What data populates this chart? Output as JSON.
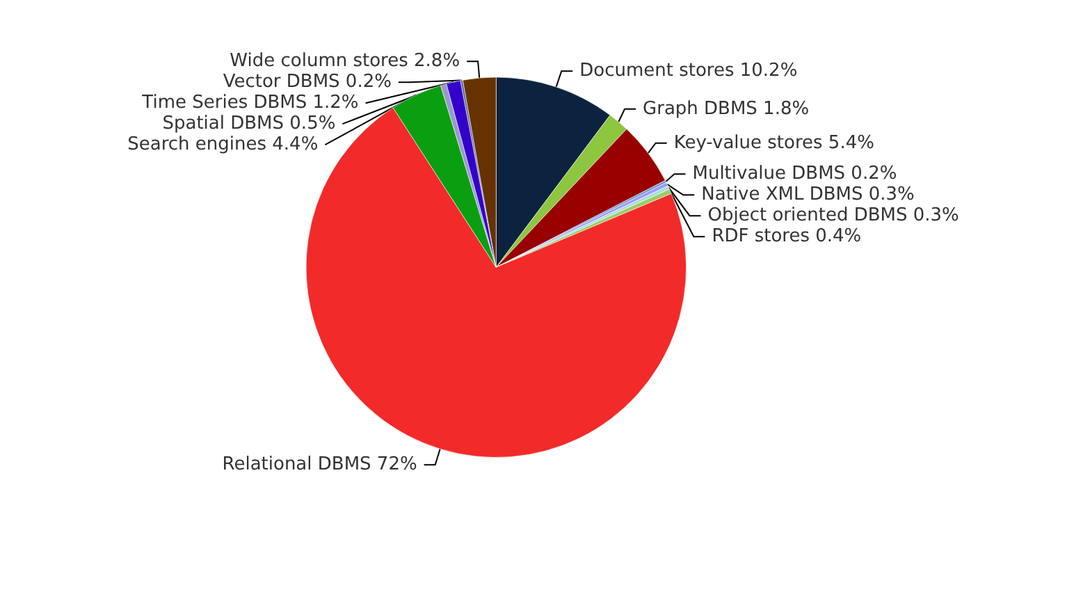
{
  "chart_data": {
    "type": "pie",
    "categories": [
      "Document stores",
      "Graph DBMS",
      "Key-value stores",
      "Multivalue DBMS",
      "Native XML DBMS",
      "Object oriented DBMS",
      "RDF stores",
      "Relational DBMS",
      "Search engines",
      "Spatial DBMS",
      "Time Series DBMS",
      "Vector DBMS",
      "Wide column stores"
    ],
    "values": [
      10.2,
      1.8,
      5.4,
      0.2,
      0.3,
      0.3,
      0.4,
      72,
      4.4,
      0.5,
      1.2,
      0.2,
      2.8
    ],
    "value_labels": [
      "10.2%",
      "1.8%",
      "5.4%",
      "0.2%",
      "0.3%",
      "0.3%",
      "0.4%",
      "72%",
      "4.4%",
      "0.5%",
      "1.2%",
      "0.2%",
      "2.8%"
    ],
    "colors": [
      "#0c2340",
      "#8dc63f",
      "#990000",
      "#6699cc",
      "#9999ff",
      "#aadddd",
      "#99cc66",
      "#f22a2a",
      "#0a9f10",
      "#9999cc",
      "#3300cc",
      "#666699",
      "#663300"
    ],
    "legend": false
  }
}
